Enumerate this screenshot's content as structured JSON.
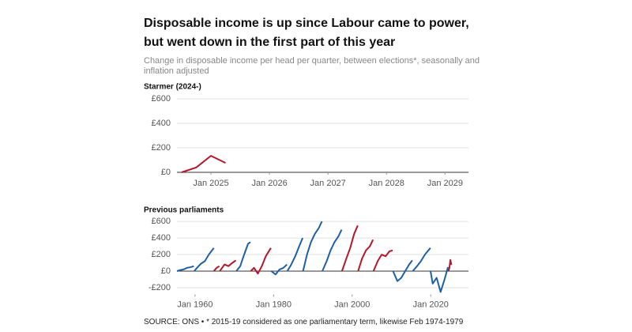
{
  "title": "Disposable income is up since Labour came to power, but went down in the first part of this year",
  "subtitle": "Change in disposable income per head per quarter, between elections*, seasonally and inflation adjusted",
  "source": "SOURCE: ONS • * 2015-19 considered as one parliamentary term, likewise Feb 1974-1979",
  "chart_data": [
    {
      "type": "line",
      "title": "Starmer (2024-)",
      "xlim": [
        2024.42,
        2029.4
      ],
      "xticks": [
        {
          "value": 2025,
          "label": "Jan 2025"
        },
        {
          "value": 2026,
          "label": "Jan 2026"
        },
        {
          "value": 2027,
          "label": "Jan 2027"
        },
        {
          "value": 2028,
          "label": "Jan 2028"
        },
        {
          "value": 2029,
          "label": "Jan 2029"
        }
      ],
      "ylim": [
        0,
        620
      ],
      "yticks": [
        {
          "value": 0,
          "label": "£0"
        },
        {
          "value": 200,
          "label": "£200"
        },
        {
          "value": 400,
          "label": "£400"
        },
        {
          "value": 600,
          "label": "£600"
        }
      ],
      "grid": true,
      "series": [
        {
          "color": "#b5172b",
          "x": [
            2024.5,
            2024.75,
            2025,
            2025.25
          ],
          "values": [
            0,
            40,
            135,
            77
          ]
        }
      ]
    },
    {
      "type": "line",
      "title": "Previous parliaments",
      "xlim": [
        1955.4,
        2029.6
      ],
      "xticks": [
        {
          "value": 1960,
          "label": "Jan 1960"
        },
        {
          "value": 1980,
          "label": "Jan 1980"
        },
        {
          "value": 2000,
          "label": "Jan 2000"
        },
        {
          "value": 2020,
          "label": "Jan 2020"
        }
      ],
      "ylim": [
        -280,
        620
      ],
      "yticks": [
        {
          "value": -200,
          "label": "-£200"
        },
        {
          "value": 0,
          "label": "£0"
        },
        {
          "value": 200,
          "label": "£200"
        },
        {
          "value": 400,
          "label": "£400"
        },
        {
          "value": 600,
          "label": "£600"
        }
      ],
      "grid": true,
      "series": [
        {
          "color": "#1f5fa6",
          "x": [
            1955.4,
            1956,
            1957,
            1958,
            1959,
            1959.7
          ],
          "values": [
            0,
            10,
            20,
            40,
            50,
            60
          ]
        },
        {
          "color": "#1f5fa6",
          "x": [
            1959.8,
            1960.5,
            1961.5,
            1962.5,
            1963.5,
            1964.8
          ],
          "values": [
            0,
            40,
            90,
            120,
            200,
            280
          ]
        },
        {
          "color": "#b5172b",
          "x": [
            1964.8,
            1965.5,
            1966.2
          ],
          "values": [
            0,
            40,
            60
          ]
        },
        {
          "color": "#b5172b",
          "x": [
            1966.3,
            1967.5,
            1968.5,
            1969.5,
            1970.4
          ],
          "values": [
            0,
            80,
            60,
            100,
            130
          ]
        },
        {
          "color": "#1f5fa6",
          "x": [
            1970.5,
            1971.5,
            1972.5,
            1973.5,
            1974.1
          ],
          "values": [
            0,
            60,
            200,
            330,
            350
          ]
        },
        {
          "color": "#b5172b",
          "x": [
            1974.2,
            1975,
            1976,
            1977,
            1978,
            1979.3
          ],
          "values": [
            0,
            40,
            -30,
            60,
            180,
            280
          ]
        },
        {
          "color": "#1f5fa6",
          "x": [
            1979.4,
            1980.5,
            1981.5,
            1982.5,
            1983.4
          ],
          "values": [
            0,
            -40,
            20,
            40,
            80
          ]
        },
        {
          "color": "#1f5fa6",
          "x": [
            1983.5,
            1984.5,
            1985.5,
            1986.5,
            1987.4
          ],
          "values": [
            0,
            80,
            180,
            300,
            400
          ]
        },
        {
          "color": "#1f5fa6",
          "x": [
            1987.5,
            1988.5,
            1989.5,
            1990.5,
            1991.5,
            1992.3
          ],
          "values": [
            0,
            200,
            350,
            450,
            520,
            600
          ]
        },
        {
          "color": "#1f5fa6",
          "x": [
            1992.4,
            1993.5,
            1994.5,
            1995.5,
            1996.5,
            1997.3
          ],
          "values": [
            0,
            120,
            250,
            350,
            420,
            500
          ]
        },
        {
          "color": "#b5172b",
          "x": [
            1997.4,
            1998.5,
            1999.5,
            2000.5,
            2001.4
          ],
          "values": [
            0,
            150,
            280,
            450,
            550
          ]
        },
        {
          "color": "#b5172b",
          "x": [
            2001.5,
            2002.5,
            2003.5,
            2004.5,
            2005.3
          ],
          "values": [
            0,
            150,
            250,
            300,
            380
          ]
        },
        {
          "color": "#b5172b",
          "x": [
            2005.4,
            2006.5,
            2007.5,
            2008.5,
            2009.5,
            2010.3
          ],
          "values": [
            0,
            120,
            200,
            180,
            240,
            250
          ]
        },
        {
          "color": "#1f5fa6",
          "x": [
            2010.4,
            2011.5,
            2012.5,
            2013.5,
            2014.5,
            2015.3
          ],
          "values": [
            0,
            -120,
            -80,
            0,
            80,
            130
          ]
        },
        {
          "color": "#1f5fa6",
          "x": [
            2015.4,
            2016.5,
            2017.5,
            2018.5,
            2019.9
          ],
          "values": [
            0,
            60,
            120,
            200,
            280
          ]
        },
        {
          "color": "#1f5fa6",
          "x": [
            2019.95,
            2020.5,
            2021.5,
            2022.5,
            2023.5,
            2024.4
          ],
          "values": [
            0,
            -150,
            -80,
            -250,
            -100,
            50
          ]
        },
        {
          "color": "#b5172b",
          "x": [
            2024.5,
            2024.75,
            2025,
            2025.25
          ],
          "values": [
            0,
            40,
            135,
            77
          ]
        }
      ]
    }
  ]
}
